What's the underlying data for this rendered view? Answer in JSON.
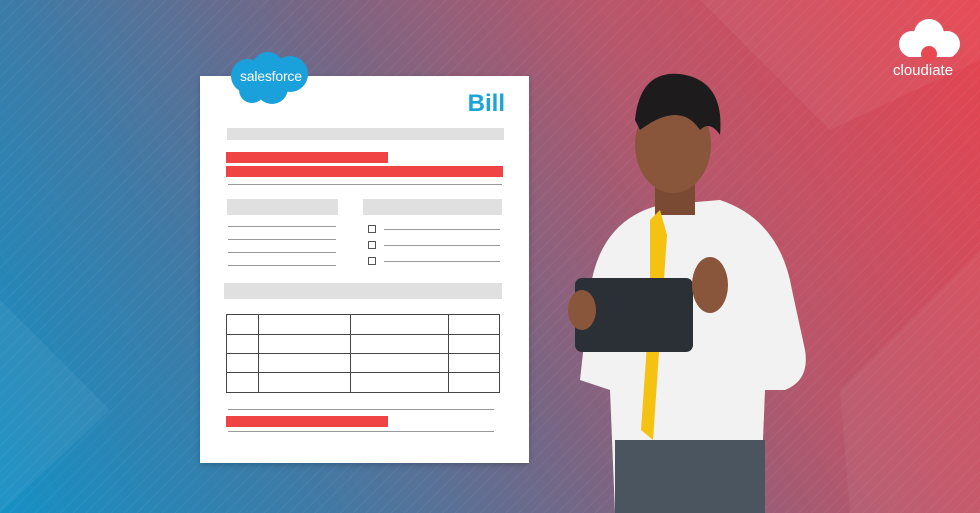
{
  "document": {
    "title": "Bill",
    "brand": "salesforce"
  },
  "logo": {
    "text": "cloudiate"
  },
  "colors": {
    "accent_blue": "#1ba4d6",
    "red": "#f04343",
    "tie": "#f5c211",
    "tablet": "#2b3036"
  }
}
